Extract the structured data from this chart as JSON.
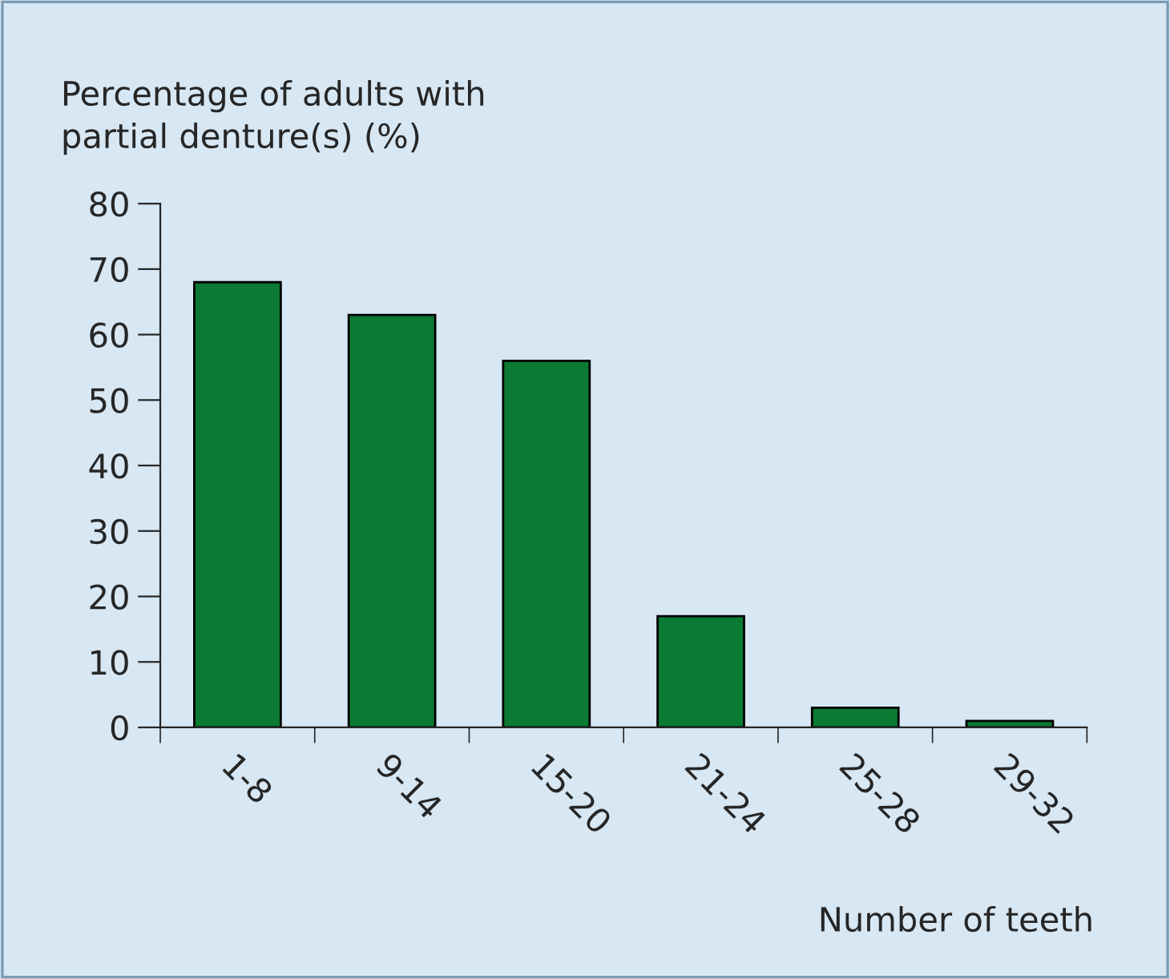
{
  "chart_data": {
    "type": "bar",
    "ylabel": "Percentage of adults with\npartial denture(s) (%)",
    "xlabel": "Number of teeth",
    "categories": [
      "1-8",
      "9-14",
      "15-20",
      "21-24",
      "25-28",
      "29-32"
    ],
    "values": [
      68,
      63,
      56,
      17,
      3,
      1
    ],
    "color": "#0b7a32",
    "ylim": [
      0,
      80
    ],
    "yticks": [
      0,
      10,
      20,
      30,
      40,
      50,
      60,
      70,
      80
    ],
    "grid": false,
    "legend": false
  }
}
